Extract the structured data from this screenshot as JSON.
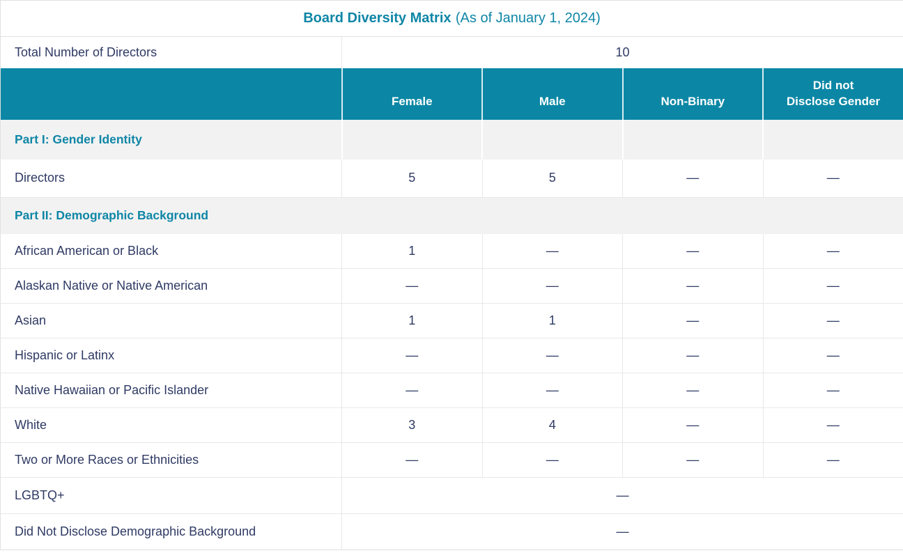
{
  "title": {
    "main": "Board Diversity Matrix",
    "suffix": "(As of January 1, 2024)"
  },
  "total_row": {
    "label": "Total Number of Directors",
    "value": "10"
  },
  "columns": [
    "Female",
    "Male",
    "Non-Binary",
    "Did not\nDisclose Gender"
  ],
  "sections": {
    "part1": {
      "heading": "Part I: Gender Identity",
      "rows": [
        {
          "label": "Directors",
          "values": [
            "5",
            "5",
            "—",
            "—"
          ]
        }
      ]
    },
    "part2": {
      "heading": "Part II: Demographic Background",
      "rows": [
        {
          "label": "African American or Black",
          "values": [
            "1",
            "—",
            "—",
            "—"
          ]
        },
        {
          "label": "Alaskan Native or Native American",
          "values": [
            "—",
            "—",
            "—",
            "—"
          ]
        },
        {
          "label": "Asian",
          "values": [
            "1",
            "1",
            "—",
            "—"
          ]
        },
        {
          "label": "Hispanic or Latinx",
          "values": [
            "—",
            "—",
            "—",
            "—"
          ]
        },
        {
          "label": "Native Hawaiian or Pacific Islander",
          "values": [
            "—",
            "—",
            "—",
            "—"
          ]
        },
        {
          "label": "White",
          "values": [
            "3",
            "4",
            "—",
            "—"
          ]
        },
        {
          "label": "Two or More Races or Ethnicities",
          "values": [
            "—",
            "—",
            "—",
            "—"
          ]
        }
      ],
      "merged_rows": [
        {
          "label": "LGBTQ+",
          "value": "—"
        },
        {
          "label": "Did Not Disclose Demographic Background",
          "value": "—"
        }
      ]
    }
  },
  "colors": {
    "teal_bg": "#0b87a5",
    "teal_text": "#0f86a6",
    "navy": "#2f3a64",
    "section_bg": "#f2f2f2",
    "border": "#e0e0e0",
    "divider": "#e8e8e8"
  }
}
